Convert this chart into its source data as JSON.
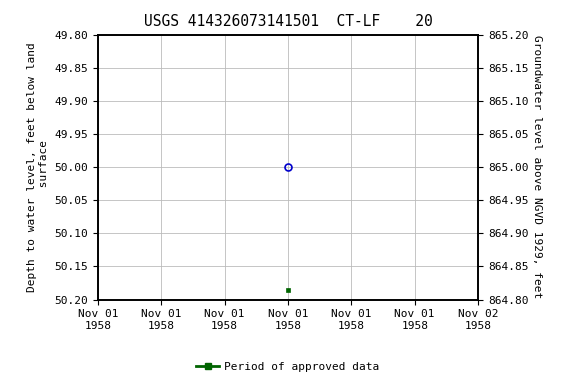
{
  "title": "USGS 414326073141501  CT-LF    20",
  "ylabel_left": "Depth to water level, feet below land\n surface",
  "ylabel_right": "Groundwater level above NGVD 1929, feet",
  "ylim_left_top": 49.8,
  "ylim_left_bottom": 50.2,
  "ylim_right_top": 865.2,
  "ylim_right_bottom": 864.8,
  "xlim": [
    0,
    6
  ],
  "xtick_positions": [
    0,
    1,
    2,
    3,
    4,
    5,
    6
  ],
  "xtick_labels": [
    "Nov 01\n1958",
    "Nov 01\n1958",
    "Nov 01\n1958",
    "Nov 01\n1958",
    "Nov 01\n1958",
    "Nov 01\n1958",
    "Nov 02\n1958"
  ],
  "yticks_left": [
    49.8,
    49.85,
    49.9,
    49.95,
    50.0,
    50.05,
    50.1,
    50.15,
    50.2
  ],
  "yticks_right": [
    865.2,
    865.15,
    865.1,
    865.05,
    865.0,
    864.95,
    864.9,
    864.85,
    864.8
  ],
  "point_blue_x": 3.0,
  "point_blue_y": 50.0,
  "point_green_x": 3.0,
  "point_green_y": 50.185,
  "blue_color": "#0000cc",
  "green_color": "#006400",
  "background_color": "#ffffff",
  "grid_color": "#bbbbbb",
  "legend_label": "Period of approved data",
  "title_fontsize": 10.5,
  "axis_label_fontsize": 8,
  "tick_fontsize": 8
}
